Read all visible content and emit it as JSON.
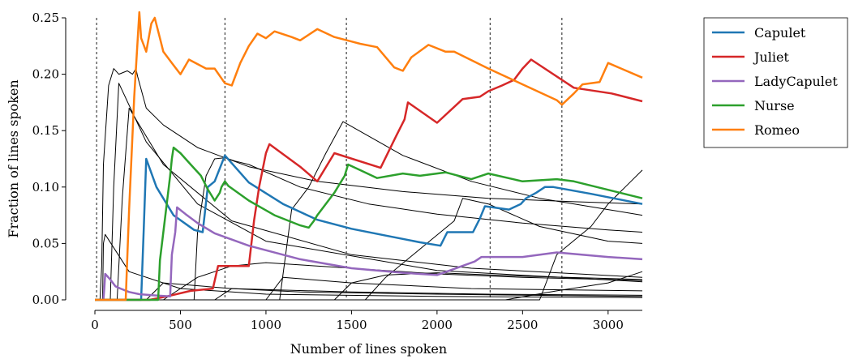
{
  "chart_data": {
    "type": "line",
    "xlabel": "Number of lines spoken",
    "ylabel": "Fraction of lines spoken",
    "xlim": [
      0,
      3200
    ],
    "ylim": [
      0,
      0.25
    ],
    "xticks": [
      0,
      500,
      1000,
      1500,
      2000,
      2500,
      3000
    ],
    "yticks": [
      0.0,
      0.05,
      0.1,
      0.15,
      0.2,
      0.25
    ],
    "xtick_labels": [
      "0",
      "500",
      "1000",
      "1500",
      "2000",
      "2500",
      "3000"
    ],
    "ytick_labels": [
      "0.00",
      "0.05",
      "0.10",
      "0.15",
      "0.20",
      "0.25"
    ],
    "grid": false,
    "legend_position": "upper right, outside plot",
    "vlines": [
      10,
      760,
      1470,
      2310,
      2730
    ],
    "vline_style": "dashed black",
    "series": [
      {
        "name": "Capulet",
        "color": "#1f77b4",
        "x": [
          0,
          270,
          285,
          300,
          360,
          460,
          580,
          630,
          660,
          700,
          760,
          900,
          1100,
          1300,
          1500,
          1700,
          1900,
          2020,
          2060,
          2210,
          2250,
          2280,
          2420,
          2490,
          2520,
          2580,
          2630,
          2680,
          2900,
          3200
        ],
        "y": [
          0.0,
          0.0,
          0.06,
          0.125,
          0.1,
          0.075,
          0.062,
          0.06,
          0.1,
          0.105,
          0.128,
          0.104,
          0.085,
          0.071,
          0.063,
          0.057,
          0.051,
          0.048,
          0.06,
          0.06,
          0.072,
          0.083,
          0.08,
          0.085,
          0.09,
          0.095,
          0.1,
          0.1,
          0.094,
          0.085
        ]
      },
      {
        "name": "Juliet",
        "color": "#d62728",
        "x": [
          0,
          320,
          420,
          560,
          690,
          720,
          900,
          930,
          960,
          1000,
          1020,
          1200,
          1300,
          1400,
          1670,
          1760,
          1810,
          1830,
          2000,
          2150,
          2250,
          2300,
          2380,
          2450,
          2500,
          2550,
          2800,
          3020,
          3200
        ],
        "y": [
          0.0,
          0.0,
          0.003,
          0.008,
          0.01,
          0.03,
          0.03,
          0.07,
          0.1,
          0.13,
          0.138,
          0.118,
          0.105,
          0.13,
          0.117,
          0.145,
          0.16,
          0.175,
          0.157,
          0.178,
          0.18,
          0.185,
          0.19,
          0.195,
          0.205,
          0.213,
          0.188,
          0.183,
          0.176
        ]
      },
      {
        "name": "LadyCapulet",
        "color": "#9467bd",
        "x": [
          0,
          50,
          55,
          60,
          90,
          120,
          150,
          200,
          260,
          340,
          440,
          450,
          470,
          480,
          530,
          600,
          700,
          900,
          1200,
          1500,
          1800,
          2000,
          2220,
          2260,
          2500,
          2700,
          3000,
          3200
        ],
        "y": [
          0.0,
          0.0,
          0.01,
          0.023,
          0.018,
          0.012,
          0.01,
          0.007,
          0.005,
          0.004,
          0.003,
          0.04,
          0.06,
          0.082,
          0.076,
          0.068,
          0.059,
          0.048,
          0.036,
          0.028,
          0.024,
          0.022,
          0.034,
          0.038,
          0.038,
          0.042,
          0.038,
          0.036
        ]
      },
      {
        "name": "Nurse",
        "color": "#2ca02c",
        "x": [
          0,
          370,
          380,
          440,
          450,
          460,
          500,
          560,
          620,
          660,
          700,
          730,
          740,
          760,
          780,
          900,
          1050,
          1200,
          1250,
          1280,
          1300,
          1400,
          1460,
          1480,
          1550,
          1650,
          1800,
          1900,
          2050,
          2200,
          2300,
          2500,
          2700,
          2800,
          3200
        ],
        "y": [
          0.0,
          0.0,
          0.035,
          0.11,
          0.125,
          0.135,
          0.13,
          0.12,
          0.11,
          0.098,
          0.088,
          0.095,
          0.1,
          0.105,
          0.101,
          0.088,
          0.075,
          0.066,
          0.064,
          0.07,
          0.075,
          0.095,
          0.11,
          0.12,
          0.115,
          0.108,
          0.112,
          0.11,
          0.113,
          0.107,
          0.112,
          0.105,
          0.107,
          0.105,
          0.09
        ]
      },
      {
        "name": "Romeo",
        "color": "#ff7f0e",
        "x": [
          0,
          180,
          200,
          230,
          260,
          270,
          300,
          330,
          350,
          380,
          400,
          450,
          500,
          550,
          650,
          700,
          760,
          800,
          850,
          900,
          950,
          1000,
          1050,
          1150,
          1200,
          1300,
          1400,
          1500,
          1550,
          1650,
          1750,
          1800,
          1850,
          1950,
          2050,
          2100,
          2300,
          2500,
          2700,
          2730,
          2800,
          2850,
          2950,
          3000,
          3200
        ],
        "y": [
          0.0,
          0.0,
          0.08,
          0.18,
          0.255,
          0.232,
          0.22,
          0.245,
          0.25,
          0.232,
          0.22,
          0.21,
          0.2,
          0.213,
          0.205,
          0.205,
          0.192,
          0.19,
          0.21,
          0.225,
          0.236,
          0.232,
          0.238,
          0.233,
          0.23,
          0.24,
          0.233,
          0.229,
          0.227,
          0.224,
          0.206,
          0.203,
          0.215,
          0.226,
          0.22,
          0.22,
          0.205,
          0.191,
          0.177,
          0.173,
          0.183,
          0.191,
          0.193,
          0.21,
          0.197
        ]
      }
    ],
    "unlabeled_series": [
      {
        "x": [
          0,
          30,
          40,
          50,
          80,
          110,
          140,
          190,
          220,
          240,
          250,
          300,
          400,
          600,
          900,
          1300,
          1800,
          2300,
          2800,
          3200
        ],
        "y": [
          0.0,
          0.0,
          0.03,
          0.12,
          0.19,
          0.205,
          0.2,
          0.203,
          0.2,
          0.205,
          0.198,
          0.17,
          0.155,
          0.135,
          0.118,
          0.105,
          0.096,
          0.09,
          0.087,
          0.085
        ]
      },
      {
        "x": [
          0,
          45,
          50,
          60,
          200,
          500,
          1000,
          2000,
          3200
        ],
        "y": [
          0.0,
          0.0,
          0.05,
          0.058,
          0.025,
          0.01,
          0.005,
          0.003,
          0.002
        ]
      },
      {
        "x": [
          0,
          90,
          110,
          140,
          300,
          600,
          1000,
          2000,
          3200
        ],
        "y": [
          0.0,
          0.0,
          0.1,
          0.192,
          0.14,
          0.085,
          0.052,
          0.026,
          0.016
        ]
      },
      {
        "x": [
          0,
          130,
          160,
          200,
          400,
          800,
          1500,
          2200,
          3200
        ],
        "y": [
          0.0,
          0.0,
          0.09,
          0.17,
          0.12,
          0.07,
          0.04,
          0.028,
          0.02
        ]
      },
      {
        "x": [
          0,
          580,
          600,
          650,
          700,
          760,
          820,
          900,
          1200,
          1600,
          2000,
          2500,
          3000,
          3200
        ],
        "y": [
          0.0,
          0.0,
          0.06,
          0.11,
          0.125,
          0.126,
          0.123,
          0.12,
          0.1,
          0.085,
          0.076,
          0.068,
          0.062,
          0.06
        ]
      },
      {
        "x": [
          0,
          1080,
          1150,
          1250,
          1350,
          1450,
          1800,
          2200,
          2600,
          3000,
          3200
        ],
        "y": [
          0.0,
          0.0,
          0.08,
          0.1,
          0.13,
          0.158,
          0.128,
          0.105,
          0.09,
          0.08,
          0.075
        ]
      },
      {
        "x": [
          0,
          1580,
          1700,
          1900,
          2100,
          2150,
          2300,
          2600,
          3000,
          3200
        ],
        "y": [
          0.0,
          0.0,
          0.02,
          0.045,
          0.07,
          0.09,
          0.085,
          0.065,
          0.052,
          0.05
        ]
      },
      {
        "x": [
          0,
          2600,
          2700,
          2900,
          3000,
          3100,
          3200
        ],
        "y": [
          0.0,
          0.0,
          0.04,
          0.065,
          0.085,
          0.1,
          0.115
        ]
      },
      {
        "x": [
          0,
          400,
          600,
          800,
          1000,
          1500,
          2000,
          2500,
          3000,
          3200
        ],
        "y": [
          0.0,
          0.0,
          0.02,
          0.03,
          0.033,
          0.028,
          0.023,
          0.02,
          0.018,
          0.017
        ]
      },
      {
        "x": [
          0,
          1400,
          1500,
          1700,
          2000,
          2500,
          3000,
          3200
        ],
        "y": [
          0.0,
          0.0,
          0.015,
          0.022,
          0.024,
          0.021,
          0.019,
          0.018
        ]
      },
      {
        "x": [
          0,
          2400,
          2700,
          3000,
          3100,
          3200
        ],
        "y": [
          0.0,
          0.0,
          0.008,
          0.015,
          0.02,
          0.025
        ]
      },
      {
        "x": [
          0,
          300,
          400,
          800,
          1500,
          2300,
          3200
        ],
        "y": [
          0.0,
          0.0,
          0.015,
          0.01,
          0.007,
          0.005,
          0.004
        ]
      },
      {
        "x": [
          0,
          700,
          800,
          1200,
          2000,
          3200
        ],
        "y": [
          0.0,
          0.0,
          0.01,
          0.007,
          0.005,
          0.003
        ]
      },
      {
        "x": [
          0,
          1000,
          1100,
          1500,
          2200,
          3200
        ],
        "y": [
          0.0,
          0.0,
          0.02,
          0.015,
          0.01,
          0.008
        ]
      }
    ]
  }
}
